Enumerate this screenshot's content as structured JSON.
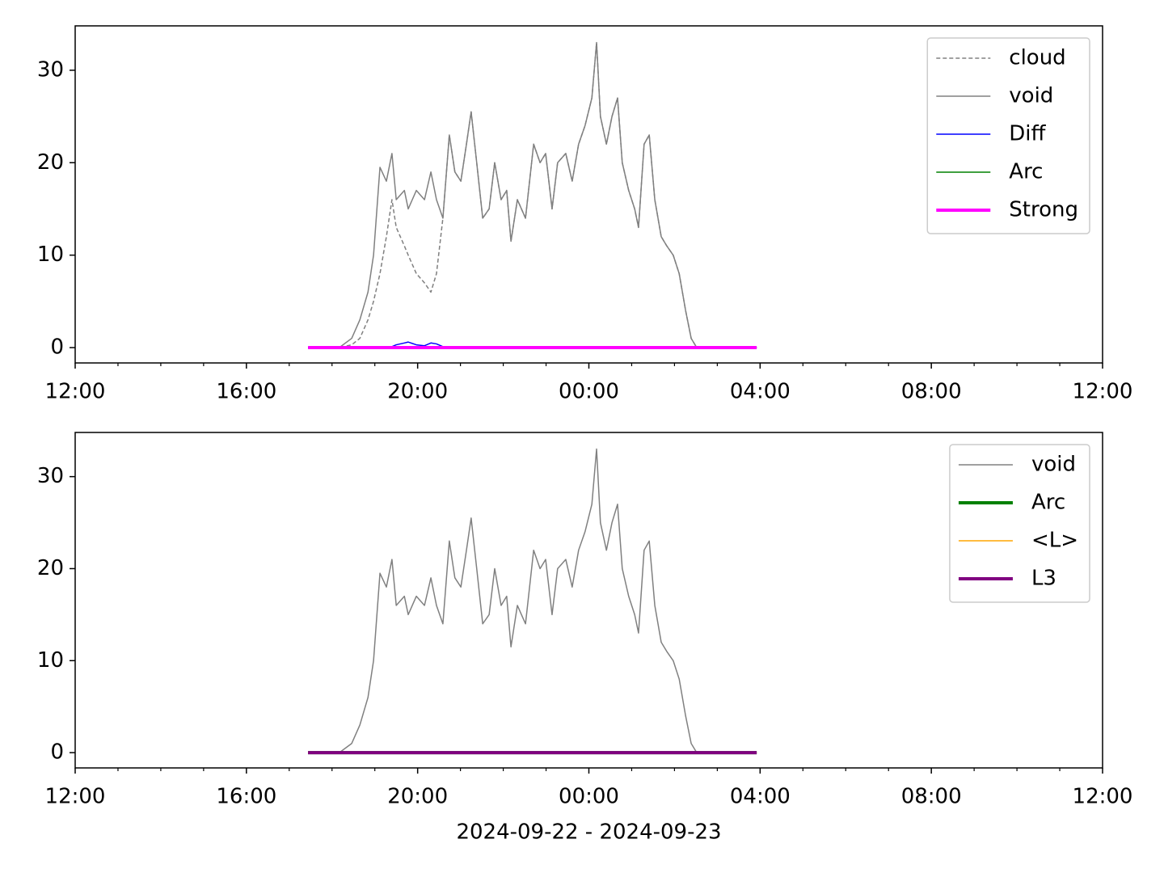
{
  "chart_data": [
    {
      "type": "line",
      "x": [
        17.44,
        18.17,
        18.46,
        18.65,
        18.84,
        18.97,
        19.12,
        19.27,
        19.4,
        19.5,
        19.69,
        19.78,
        19.97,
        20.16,
        20.31,
        20.44,
        20.59,
        20.74,
        20.87,
        21.01,
        21.14,
        21.25,
        21.38,
        21.52,
        21.67,
        21.8,
        21.95,
        22.08,
        22.18,
        22.33,
        22.52,
        22.71,
        22.86,
        22.99,
        23.14,
        23.27,
        23.46,
        23.61,
        23.76,
        23.91,
        24.07,
        24.18,
        24.27,
        24.41,
        24.54,
        24.67,
        24.78,
        24.93,
        25.07,
        25.16,
        25.29,
        25.41,
        25.54,
        25.69,
        25.82,
        25.97,
        26.11,
        26.26,
        26.39,
        26.52,
        27.92
      ],
      "series": [
        {
          "name": "cloud",
          "color": "#808080",
          "linestyle": "dashed",
          "linewidth": 1.5,
          "values": [
            0,
            0,
            0.3,
            1,
            3,
            5,
            8,
            12,
            16,
            13,
            11,
            10,
            8,
            7,
            6,
            8,
            14,
            23,
            19,
            18,
            22,
            25.5,
            20,
            14,
            15,
            20,
            16,
            17,
            11.5,
            16,
            14,
            22,
            20,
            21,
            15,
            20,
            21,
            18,
            22,
            24,
            27,
            33,
            25,
            22,
            25,
            27,
            20,
            17,
            15,
            13,
            22,
            23,
            16,
            12,
            11,
            10,
            8,
            4,
            1,
            0,
            0
          ]
        },
        {
          "name": "void",
          "color": "#808080",
          "linestyle": "solid",
          "linewidth": 1.5,
          "values": [
            0,
            0,
            1,
            3,
            6,
            10,
            19.5,
            18,
            21,
            16,
            17,
            15,
            17,
            16,
            19,
            16,
            14,
            23,
            19,
            18,
            22,
            25.5,
            20,
            14,
            15,
            20,
            16,
            17,
            11.5,
            16,
            14,
            22,
            20,
            21,
            15,
            20,
            21,
            18,
            22,
            24,
            27,
            33,
            25,
            22,
            25,
            27,
            20,
            17,
            15,
            13,
            22,
            23,
            16,
            12,
            11,
            10,
            8,
            4,
            1,
            0,
            0
          ]
        },
        {
          "name": "Diff",
          "color": "#0000ff",
          "linestyle": "solid",
          "linewidth": 1.5,
          "values": [
            0,
            0,
            0,
            0,
            0,
            0,
            0,
            0,
            0.1,
            0.3,
            0.5,
            0.6,
            0.3,
            0.2,
            0.5,
            0.4,
            0.1,
            0,
            0,
            0,
            0,
            0,
            0,
            0,
            0,
            0,
            0,
            0,
            0,
            0,
            0,
            0,
            0,
            0,
            0,
            0,
            0,
            0,
            0,
            0,
            0,
            0,
            0,
            0,
            0,
            0,
            0,
            0,
            0,
            0,
            0,
            0,
            0,
            0,
            0,
            0,
            0,
            0,
            0,
            0,
            0
          ]
        },
        {
          "name": "Arc",
          "color": "#008000",
          "linestyle": "solid",
          "linewidth": 1.5,
          "values": [
            0,
            0,
            0,
            0,
            0,
            0,
            0,
            0,
            0,
            0,
            0,
            0,
            0,
            0,
            0,
            0,
            0,
            0,
            0,
            0,
            0,
            0,
            0,
            0,
            0,
            0,
            0,
            0,
            0,
            0,
            0,
            0,
            0,
            0,
            0,
            0,
            0,
            0,
            0,
            0,
            0,
            0,
            0,
            0,
            0,
            0,
            0,
            0,
            0,
            0,
            0,
            0,
            0,
            0,
            0,
            0,
            0,
            0,
            0,
            0,
            0
          ]
        },
        {
          "name": "Strong",
          "color": "#ff00ff",
          "linestyle": "solid",
          "linewidth": 4,
          "values": [
            0,
            0,
            0,
            0,
            0,
            0,
            0,
            0,
            0,
            0,
            0,
            0,
            0,
            0,
            0,
            0,
            0,
            0,
            0,
            0,
            0,
            0,
            0,
            0,
            0,
            0,
            0,
            0,
            0,
            0,
            0,
            0,
            0,
            0,
            0,
            0,
            0,
            0,
            0,
            0,
            0,
            0,
            0,
            0,
            0,
            0,
            0,
            0,
            0,
            0,
            0,
            0,
            0,
            0,
            0,
            0,
            0,
            0,
            0,
            0,
            0
          ]
        }
      ],
      "xlim": [
        12,
        36
      ],
      "xticks": [
        {
          "value": 12,
          "label": "12:00"
        },
        {
          "value": 16,
          "label": "16:00"
        },
        {
          "value": 20,
          "label": "20:00"
        },
        {
          "value": 24,
          "label": "00:00"
        },
        {
          "value": 28,
          "label": "04:00"
        },
        {
          "value": 32,
          "label": "08:00"
        },
        {
          "value": 36,
          "label": "12:00"
        }
      ],
      "xminorticks": [
        13,
        14,
        15,
        17,
        18,
        19,
        21,
        22,
        23,
        25,
        26,
        27,
        29,
        30,
        31,
        33,
        34,
        35
      ],
      "ylim": [
        -1.66,
        34.8
      ],
      "yticks": [
        0,
        10,
        20,
        30
      ],
      "legend": "upper right"
    },
    {
      "type": "line",
      "x": [
        17.44,
        18.17,
        18.46,
        18.65,
        18.84,
        18.97,
        19.12,
        19.27,
        19.4,
        19.5,
        19.69,
        19.78,
        19.97,
        20.16,
        20.31,
        20.44,
        20.59,
        20.74,
        20.87,
        21.01,
        21.14,
        21.25,
        21.38,
        21.52,
        21.67,
        21.8,
        21.95,
        22.08,
        22.18,
        22.33,
        22.52,
        22.71,
        22.86,
        22.99,
        23.14,
        23.27,
        23.46,
        23.61,
        23.76,
        23.91,
        24.07,
        24.18,
        24.27,
        24.41,
        24.54,
        24.67,
        24.78,
        24.93,
        25.07,
        25.16,
        25.29,
        25.41,
        25.54,
        25.69,
        25.82,
        25.97,
        26.11,
        26.26,
        26.39,
        26.52,
        27.92
      ],
      "series": [
        {
          "name": "void",
          "color": "#808080",
          "linestyle": "solid",
          "linewidth": 1.5,
          "values": [
            0,
            0,
            1,
            3,
            6,
            10,
            19.5,
            18,
            21,
            16,
            17,
            15,
            17,
            16,
            19,
            16,
            14,
            23,
            19,
            18,
            22,
            25.5,
            20,
            14,
            15,
            20,
            16,
            17,
            11.5,
            16,
            14,
            22,
            20,
            21,
            15,
            20,
            21,
            18,
            22,
            24,
            27,
            33,
            25,
            22,
            25,
            27,
            20,
            17,
            15,
            13,
            22,
            23,
            16,
            12,
            11,
            10,
            8,
            4,
            1,
            0,
            0
          ]
        },
        {
          "name": "Arc",
          "color": "#008000",
          "linestyle": "solid",
          "linewidth": 4,
          "values": [
            0,
            0,
            0,
            0,
            0,
            0,
            0,
            0,
            0,
            0,
            0,
            0,
            0,
            0,
            0,
            0,
            0,
            0,
            0,
            0,
            0,
            0,
            0,
            0,
            0,
            0,
            0,
            0,
            0,
            0,
            0,
            0,
            0,
            0,
            0,
            0,
            0,
            0,
            0,
            0,
            0,
            0,
            0,
            0,
            0,
            0,
            0,
            0,
            0,
            0,
            0,
            0,
            0,
            0,
            0,
            0,
            0,
            0,
            0,
            0,
            0
          ]
        },
        {
          "name": "<L>",
          "color": "#ffa500",
          "linestyle": "solid",
          "linewidth": 1.5,
          "values": [
            0,
            0,
            0,
            0,
            0,
            0,
            0,
            0,
            0,
            0,
            0,
            0,
            0,
            0,
            0,
            0,
            0,
            0,
            0,
            0,
            0,
            0,
            0,
            0,
            0,
            0,
            0,
            0,
            0,
            0,
            0,
            0,
            0,
            0,
            0,
            0,
            0,
            0,
            0,
            0,
            0,
            0,
            0,
            0,
            0,
            0,
            0,
            0,
            0,
            0,
            0,
            0,
            0,
            0,
            0,
            0,
            0,
            0,
            0,
            0,
            0
          ]
        },
        {
          "name": "L3",
          "color": "#800080",
          "linestyle": "solid",
          "linewidth": 4,
          "values": [
            0,
            0,
            0,
            0,
            0,
            0,
            0,
            0,
            0,
            0,
            0,
            0,
            0,
            0,
            0,
            0,
            0,
            0,
            0,
            0,
            0,
            0,
            0,
            0,
            0,
            0,
            0,
            0,
            0,
            0,
            0,
            0,
            0,
            0,
            0,
            0,
            0,
            0,
            0,
            0,
            0,
            0,
            0,
            0,
            0,
            0,
            0,
            0,
            0,
            0,
            0,
            0,
            0,
            0,
            0,
            0,
            0,
            0,
            0,
            0,
            0
          ]
        }
      ],
      "xlim": [
        12,
        36
      ],
      "xticks": [
        {
          "value": 12,
          "label": "12:00"
        },
        {
          "value": 16,
          "label": "16:00"
        },
        {
          "value": 20,
          "label": "20:00"
        },
        {
          "value": 24,
          "label": "00:00"
        },
        {
          "value": 28,
          "label": "04:00"
        },
        {
          "value": 32,
          "label": "08:00"
        },
        {
          "value": 36,
          "label": "12:00"
        }
      ],
      "xminorticks": [
        13,
        14,
        15,
        17,
        18,
        19,
        21,
        22,
        23,
        25,
        26,
        27,
        29,
        30,
        31,
        33,
        34,
        35
      ],
      "ylim": [
        -1.66,
        34.8
      ],
      "yticks": [
        0,
        10,
        20,
        30
      ],
      "legend": "upper right",
      "xlabel": "2024-09-22 - 2024-09-23"
    }
  ]
}
